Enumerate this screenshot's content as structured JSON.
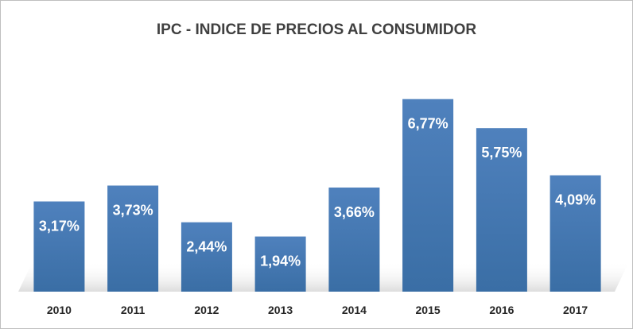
{
  "chart_data": {
    "type": "bar",
    "title": "IPC - INDICE DE PRECIOS AL CONSUMIDOR",
    "categories": [
      "2010",
      "2011",
      "2012",
      "2013",
      "2014",
      "2015",
      "2016",
      "2017"
    ],
    "values": [
      3.17,
      3.73,
      2.44,
      1.94,
      3.66,
      6.77,
      5.75,
      4.09
    ],
    "data_labels": [
      "3,17%",
      "3,73%",
      "2,44%",
      "1,94%",
      "3,66%",
      "6,77%",
      "5,75%",
      "4,09%"
    ],
    "ylim": [
      0,
      7.6
    ],
    "grid": false,
    "legend": "none",
    "colors": {
      "bar_top": "#4f81bd",
      "bar_bottom": "#3a6ea5",
      "title": "#404040",
      "tick": "#262626",
      "data_label": "#ffffff"
    }
  }
}
